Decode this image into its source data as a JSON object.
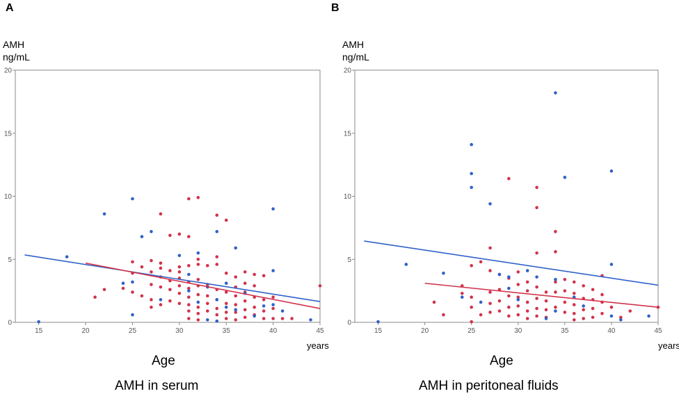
{
  "chart_data": [
    {
      "type": "scatter",
      "panel_label": "A",
      "ylabel_line1": "AMH",
      "ylabel_line2": "ng/mL",
      "xlabel": "Age",
      "xunit": "years",
      "caption": "AMH in serum",
      "xlim": [
        12.5,
        45
      ],
      "ylim": [
        0,
        20
      ],
      "xticks": [
        15,
        20,
        25,
        30,
        35,
        40,
        45
      ],
      "yticks": [
        0,
        5,
        10,
        15,
        20
      ],
      "colors": {
        "blue": "#2f62c8",
        "red": "#d1334b",
        "frame": "#888888"
      },
      "series": [
        {
          "name": "blue",
          "points": [
            [
              15,
              0.05
            ],
            [
              18,
              5.2
            ],
            [
              22,
              8.6
            ],
            [
              24,
              3.1
            ],
            [
              25,
              9.8
            ],
            [
              25,
              3.2
            ],
            [
              25,
              0.6
            ],
            [
              26,
              6.8
            ],
            [
              27,
              7.2
            ],
            [
              28,
              1.8
            ],
            [
              30,
              5.3
            ],
            [
              31,
              3.8
            ],
            [
              31,
              2.5
            ],
            [
              32,
              5.5
            ],
            [
              32,
              1.6
            ],
            [
              33,
              2.8
            ],
            [
              33,
              0.2
            ],
            [
              34,
              7.2
            ],
            [
              34,
              1.8
            ],
            [
              34,
              0.1
            ],
            [
              35,
              3.1
            ],
            [
              35,
              1.2
            ],
            [
              36,
              5.9
            ],
            [
              36,
              1.0
            ],
            [
              37,
              2.3
            ],
            [
              38,
              0.5
            ],
            [
              39,
              1.3
            ],
            [
              40,
              9.0
            ],
            [
              40,
              4.1
            ],
            [
              40,
              1.4
            ],
            [
              41,
              0.9
            ],
            [
              44,
              0.2
            ]
          ]
        },
        {
          "name": "red",
          "points": [
            [
              21,
              2.0
            ],
            [
              22,
              2.6
            ],
            [
              24,
              2.7
            ],
            [
              25,
              4.8
            ],
            [
              25,
              3.9
            ],
            [
              25,
              2.4
            ],
            [
              26,
              4.4
            ],
            [
              26,
              2.1
            ],
            [
              27,
              4.9
            ],
            [
              27,
              4.0
            ],
            [
              27,
              3.0
            ],
            [
              27,
              1.8
            ],
            [
              27,
              1.2
            ],
            [
              28,
              8.6
            ],
            [
              28,
              4.7
            ],
            [
              28,
              4.3
            ],
            [
              28,
              3.6
            ],
            [
              28,
              2.8
            ],
            [
              28,
              1.4
            ],
            [
              29,
              6.9
            ],
            [
              29,
              4.1
            ],
            [
              29,
              3.3
            ],
            [
              29,
              2.6
            ],
            [
              29,
              1.7
            ],
            [
              30,
              7.0
            ],
            [
              30,
              4.4
            ],
            [
              30,
              4.0
            ],
            [
              30,
              3.5
            ],
            [
              30,
              2.9
            ],
            [
              30,
              2.3
            ],
            [
              30,
              1.5
            ],
            [
              31,
              9.8
            ],
            [
              31,
              6.8
            ],
            [
              31,
              4.5
            ],
            [
              31,
              3.2
            ],
            [
              31,
              2.7
            ],
            [
              31,
              2.0
            ],
            [
              31,
              1.4
            ],
            [
              31,
              0.9
            ],
            [
              31,
              0.3
            ],
            [
              32,
              9.9
            ],
            [
              32,
              5.0
            ],
            [
              32,
              4.6
            ],
            [
              32,
              3.4
            ],
            [
              32,
              2.9
            ],
            [
              32,
              2.2
            ],
            [
              32,
              1.2
            ],
            [
              32,
              0.7
            ],
            [
              32,
              0.2
            ],
            [
              33,
              4.5
            ],
            [
              33,
              3.0
            ],
            [
              33,
              2.1
            ],
            [
              33,
              1.5
            ],
            [
              33,
              0.9
            ],
            [
              34,
              8.5
            ],
            [
              34,
              5.2
            ],
            [
              34,
              4.6
            ],
            [
              34,
              2.6
            ],
            [
              34,
              1.8
            ],
            [
              34,
              1.1
            ],
            [
              34,
              0.6
            ],
            [
              35,
              8.1
            ],
            [
              35,
              3.9
            ],
            [
              35,
              2.4
            ],
            [
              35,
              1.5
            ],
            [
              35,
              0.8
            ],
            [
              35,
              0.3
            ],
            [
              36,
              3.6
            ],
            [
              36,
              2.8
            ],
            [
              36,
              2.1
            ],
            [
              36,
              1.4
            ],
            [
              36,
              0.8
            ],
            [
              36,
              0.2
            ],
            [
              37,
              4.0
            ],
            [
              37,
              3.1
            ],
            [
              37,
              2.4
            ],
            [
              37,
              1.7
            ],
            [
              37,
              1.0
            ],
            [
              37,
              0.4
            ],
            [
              38,
              3.8
            ],
            [
              38,
              2.9
            ],
            [
              38,
              2.0
            ],
            [
              38,
              1.2
            ],
            [
              38,
              0.6
            ],
            [
              39,
              3.7
            ],
            [
              39,
              1.8
            ],
            [
              39,
              0.9
            ],
            [
              39,
              0.3
            ],
            [
              40,
              2.0
            ],
            [
              40,
              1.1
            ],
            [
              40,
              0.3
            ],
            [
              41,
              0.3
            ],
            [
              42,
              0.3
            ],
            [
              45,
              2.9
            ]
          ]
        }
      ],
      "fit_lines": [
        {
          "name": "blue",
          "x": [
            13.5,
            45
          ],
          "y": [
            5.35,
            1.65
          ]
        },
        {
          "name": "red",
          "x": [
            20,
            45
          ],
          "y": [
            4.7,
            1.1
          ]
        }
      ]
    },
    {
      "type": "scatter",
      "panel_label": "B",
      "ylabel_line1": "AMH",
      "ylabel_line2": "ng/mL",
      "xlabel": "Age",
      "xunit": "years",
      "caption": "AMH in peritoneal fluids",
      "xlim": [
        12.5,
        45
      ],
      "ylim": [
        0,
        20
      ],
      "xticks": [
        15,
        20,
        25,
        30,
        35,
        40,
        45
      ],
      "yticks": [
        0,
        5,
        10,
        15,
        20
      ],
      "colors": {
        "blue": "#2f62c8",
        "red": "#d1334b",
        "frame": "#888888"
      },
      "series": [
        {
          "name": "blue",
          "points": [
            [
              15,
              0.05
            ],
            [
              18,
              4.6
            ],
            [
              22,
              3.9
            ],
            [
              24,
              2.0
            ],
            [
              25,
              14.1
            ],
            [
              25,
              11.8
            ],
            [
              25,
              10.7
            ],
            [
              26,
              1.6
            ],
            [
              27,
              9.4
            ],
            [
              28,
              3.8
            ],
            [
              29,
              3.6
            ],
            [
              29,
              2.7
            ],
            [
              30,
              1.8
            ],
            [
              31,
              4.1
            ],
            [
              32,
              3.6
            ],
            [
              33,
              0.3
            ],
            [
              34,
              18.2
            ],
            [
              34,
              3.4
            ],
            [
              34,
              0.9
            ],
            [
              35,
              11.5
            ],
            [
              36,
              2.0
            ],
            [
              37,
              1.3
            ],
            [
              40,
              12.0
            ],
            [
              40,
              4.6
            ],
            [
              40,
              0.5
            ],
            [
              41,
              0.2
            ],
            [
              44,
              0.5
            ]
          ]
        },
        {
          "name": "red",
          "points": [
            [
              21,
              1.6
            ],
            [
              22,
              0.6
            ],
            [
              24,
              2.9
            ],
            [
              24,
              2.3
            ],
            [
              25,
              4.5
            ],
            [
              25,
              2.0
            ],
            [
              25,
              1.2
            ],
            [
              25,
              0.05
            ],
            [
              26,
              4.8
            ],
            [
              26,
              0.6
            ],
            [
              27,
              5.9
            ],
            [
              27,
              4.1
            ],
            [
              27,
              2.4
            ],
            [
              27,
              1.5
            ],
            [
              27,
              0.8
            ],
            [
              28,
              3.8
            ],
            [
              28,
              2.6
            ],
            [
              28,
              1.7
            ],
            [
              28,
              0.9
            ],
            [
              29,
              11.4
            ],
            [
              29,
              3.5
            ],
            [
              29,
              2.1
            ],
            [
              29,
              1.2
            ],
            [
              29,
              0.5
            ],
            [
              30,
              4.0
            ],
            [
              30,
              3.0
            ],
            [
              30,
              2.0
            ],
            [
              30,
              1.3
            ],
            [
              30,
              0.6
            ],
            [
              31,
              3.2
            ],
            [
              31,
              2.5
            ],
            [
              31,
              1.6
            ],
            [
              31,
              0.9
            ],
            [
              31,
              0.3
            ],
            [
              32,
              10.7
            ],
            [
              32,
              9.1
            ],
            [
              32,
              5.5
            ],
            [
              32,
              2.8
            ],
            [
              32,
              1.9
            ],
            [
              32,
              1.1
            ],
            [
              32,
              0.5
            ],
            [
              33,
              2.4
            ],
            [
              33,
              1.7
            ],
            [
              33,
              1.0
            ],
            [
              33,
              0.4
            ],
            [
              34,
              7.2
            ],
            [
              34,
              5.6
            ],
            [
              34,
              3.2
            ],
            [
              34,
              2.4
            ],
            [
              34,
              1.2
            ],
            [
              35,
              3.4
            ],
            [
              35,
              2.5
            ],
            [
              35,
              1.6
            ],
            [
              35,
              0.8
            ],
            [
              36,
              3.2
            ],
            [
              36,
              2.3
            ],
            [
              36,
              1.4
            ],
            [
              36,
              0.7
            ],
            [
              36,
              0.2
            ],
            [
              37,
              2.9
            ],
            [
              37,
              1.9
            ],
            [
              37,
              1.0
            ],
            [
              37,
              0.3
            ],
            [
              38,
              2.6
            ],
            [
              38,
              1.8
            ],
            [
              38,
              1.1
            ],
            [
              38,
              0.4
            ],
            [
              39,
              3.7
            ],
            [
              39,
              2.2
            ],
            [
              39,
              1.6
            ],
            [
              39,
              0.7
            ],
            [
              40,
              1.2
            ],
            [
              41,
              0.4
            ],
            [
              42,
              0.9
            ],
            [
              45,
              1.2
            ]
          ]
        }
      ],
      "fit_lines": [
        {
          "name": "blue",
          "x": [
            13.5,
            45
          ],
          "y": [
            6.45,
            2.95
          ]
        },
        {
          "name": "red",
          "x": [
            20,
            45
          ],
          "y": [
            3.1,
            1.2
          ]
        }
      ]
    }
  ]
}
